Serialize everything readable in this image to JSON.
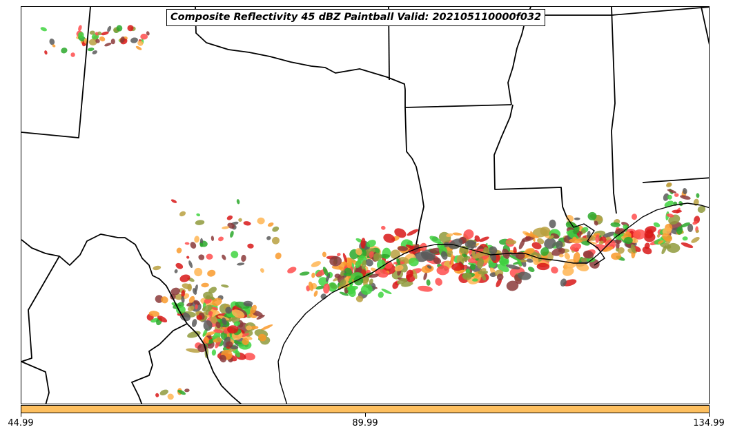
{
  "title": "Composite Reflectivity 45 dBZ Paintball Valid: 202105110000f032",
  "colorbar": {
    "color": "#fdbf5f",
    "ticks": [
      "44.99",
      "89.99",
      "134.99"
    ]
  },
  "palette": [
    "#3fd33f",
    "#ff4c4c",
    "#f99a2c",
    "#8f9a3c",
    "#8b3a3a",
    "#5a5a5a",
    "#b8a040",
    "#d81818",
    "#ffb552",
    "#2aa82a"
  ]
}
